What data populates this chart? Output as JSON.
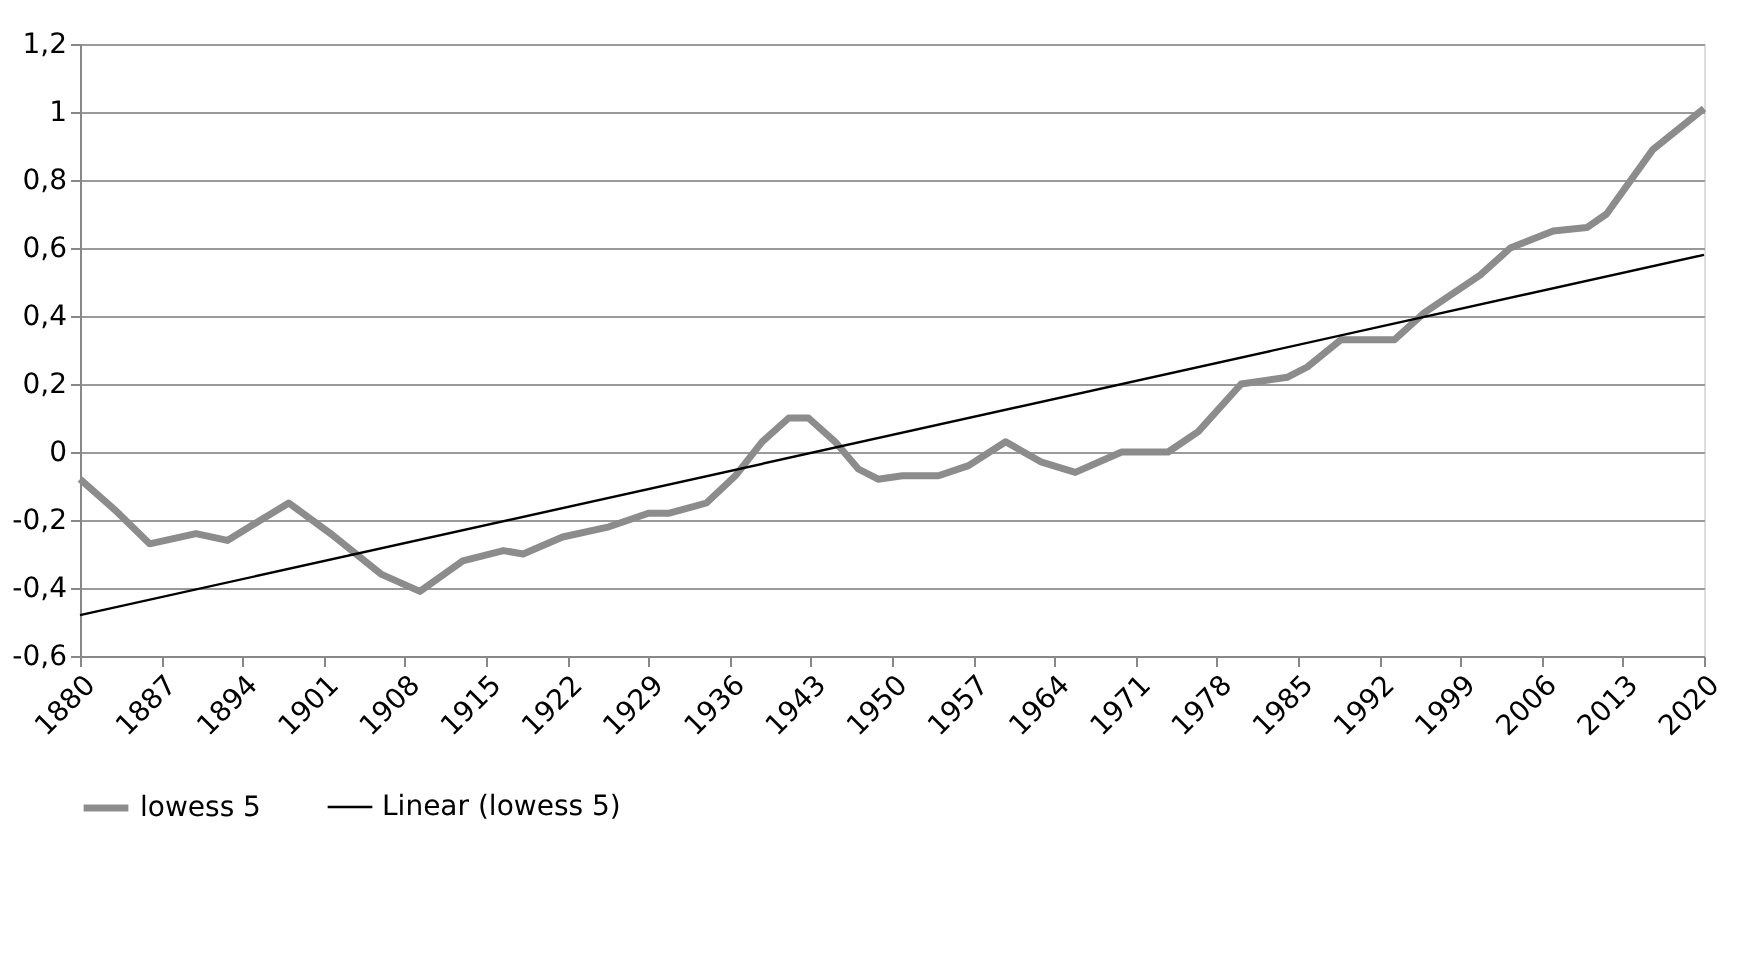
{
  "chart_data": {
    "type": "line",
    "xlim": [
      1880,
      2020
    ],
    "xticks": [
      1880,
      1887,
      1894,
      1901,
      1908,
      1915,
      1922,
      1929,
      1936,
      1943,
      1950,
      1957,
      1964,
      1971,
      1978,
      1985,
      1992,
      1999,
      2006,
      2013,
      2020
    ],
    "ylim": [
      -0.6,
      1.2
    ],
    "yticks": [
      {
        "value": -0.6,
        "label": "-0,6"
      },
      {
        "value": -0.4,
        "label": "-0,4"
      },
      {
        "value": -0.2,
        "label": "-0,2"
      },
      0,
      {
        "value": 0.2,
        "label": "0,2"
      },
      {
        "value": 0.4,
        "label": "0,4"
      },
      {
        "value": 0.6,
        "label": "0,6"
      },
      {
        "value": 0.8,
        "label": "0,8"
      },
      1,
      {
        "value": 1.2,
        "label": "1,2"
      }
    ],
    "grid": "y",
    "legend": "bottom",
    "marker": "none",
    "line_style": "solid",
    "series": [
      {
        "name": "lowess 5",
        "color": "#8c8c8c",
        "x": [
          1880,
          1883,
          1886,
          1890,
          1892.7,
          1898,
          1901.6,
          1906,
          1909.3,
          1913,
          1916.5,
          1918.2,
          1921.6,
          1925.6,
          1929,
          1930.8,
          1934,
          1936.5,
          1938.8,
          1941.1,
          1942.8,
          1945.1,
          1947.1,
          1948.8,
          1950.9,
          1954,
          1956.6,
          1959.8,
          1962.9,
          1965.8,
          1969.8,
          1973.8,
          1976.4,
          1980.1,
          1984.1,
          1985.8,
          1988.7,
          1993.3,
          1995.9,
          2000.7,
          2003.3,
          2007,
          2009.9,
          2011.6,
          2015.6,
          2020
        ],
        "values": [
          -0.08,
          -0.17,
          -0.27,
          -0.24,
          -0.26,
          -0.15,
          -0.24,
          -0.36,
          -0.41,
          -0.32,
          -0.29,
          -0.3,
          -0.25,
          -0.22,
          -0.18,
          -0.18,
          -0.15,
          -0.07,
          0.03,
          0.1,
          0.1,
          0.03,
          -0.05,
          -0.08,
          -0.07,
          -0.07,
          -0.04,
          0.03,
          -0.03,
          -0.06,
          0.0,
          0.0,
          0.06,
          0.2,
          0.22,
          0.25,
          0.33,
          0.33,
          0.41,
          0.52,
          0.6,
          0.65,
          0.66,
          0.7,
          0.89,
          1.01
        ]
      },
      {
        "name": "Linear (lowess 5)",
        "color": "#000000",
        "x": [
          1880,
          2020
        ],
        "values": [
          -0.48,
          0.58
        ]
      }
    ]
  }
}
